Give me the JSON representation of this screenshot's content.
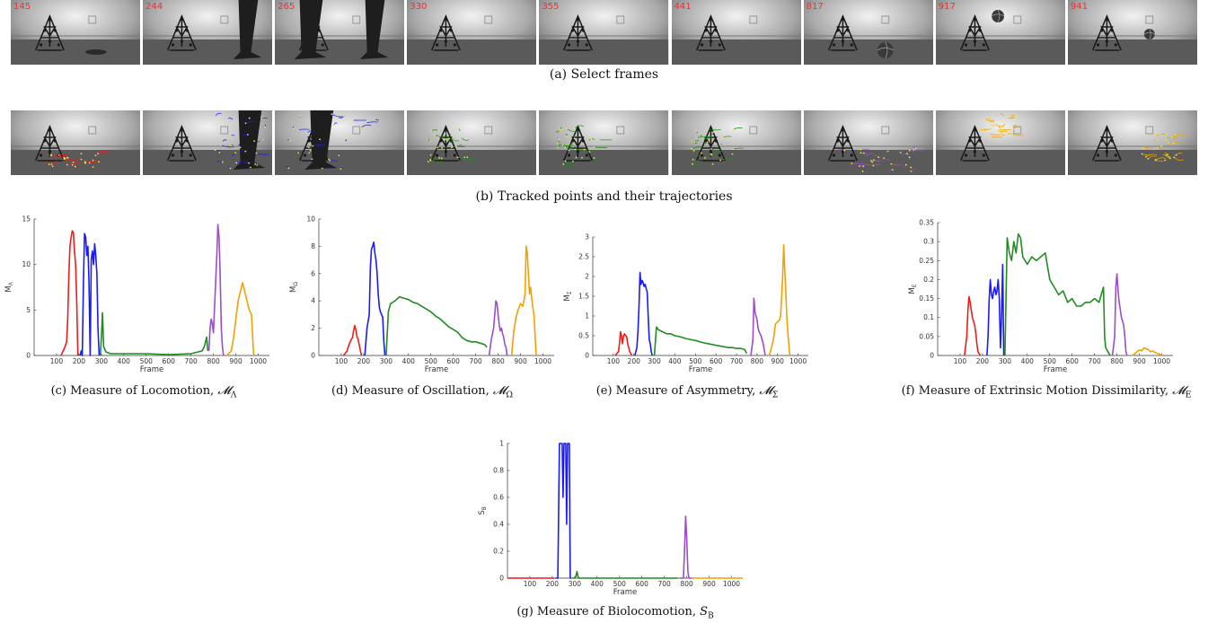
{
  "strip_a": {
    "frames": [
      {
        "num": "145",
        "scene": "object"
      },
      {
        "num": "244",
        "scene": "leg1"
      },
      {
        "num": "265",
        "scene": "leg2"
      },
      {
        "num": "330",
        "scene": "robot"
      },
      {
        "num": "355",
        "scene": "robot"
      },
      {
        "num": "441",
        "scene": "robot"
      },
      {
        "num": "817",
        "scene": "ball"
      },
      {
        "num": "917",
        "scene": "ball-air"
      },
      {
        "num": "941",
        "scene": "ball-right"
      }
    ],
    "caption": "(a) Select frames"
  },
  "strip_b": {
    "frames": [
      {
        "track": "red"
      },
      {
        "track": "blue"
      },
      {
        "track": "blue-wide"
      },
      {
        "track": "green"
      },
      {
        "track": "green"
      },
      {
        "track": "green"
      },
      {
        "track": "purple"
      },
      {
        "track": "orange-up"
      },
      {
        "track": "orange-right"
      }
    ],
    "caption": "(b) Tracked points and their trajectories"
  },
  "colors": {
    "red": "#ee1c1c",
    "blue": "#1a1aff",
    "green": "#228b22",
    "purple": "#9b4dca",
    "orange": "#f2a100"
  },
  "chart_data": [
    {
      "id": "c",
      "type": "line",
      "caption": "(c) Measure of Locomotion, ",
      "caption_math": "𝓜",
      "caption_sub": "Λ",
      "xlabel": "Frame",
      "ylabel": "M",
      "ylabel_sub": "Λ",
      "xlim": [
        0,
        1050
      ],
      "ylim": [
        0,
        15
      ],
      "xticks": [
        100,
        200,
        300,
        400,
        500,
        600,
        700,
        800,
        900,
        1000
      ],
      "yticks": [
        0,
        5,
        10,
        15
      ],
      "series": [
        {
          "color": "red",
          "x": [
            120,
            135,
            145,
            150,
            155,
            160,
            165,
            170,
            175,
            180,
            185,
            190,
            195
          ],
          "y": [
            0,
            0.8,
            1.5,
            4,
            9,
            12,
            13,
            13.7,
            13.5,
            11.5,
            10,
            6,
            0
          ]
        },
        {
          "color": "blue",
          "x": [
            205,
            210,
            215,
            220,
            225,
            230,
            235,
            240,
            245,
            250,
            255,
            260,
            265,
            270,
            275,
            280,
            285,
            290
          ],
          "y": [
            0,
            0.5,
            0,
            8,
            13.4,
            13,
            11,
            12,
            8,
            0,
            10.5,
            11.5,
            10,
            12.3,
            11,
            9,
            3,
            0
          ]
        },
        {
          "color": "green",
          "x": [
            295,
            300,
            305,
            310,
            320,
            340,
            400,
            500,
            600,
            700,
            750,
            760,
            770,
            775
          ],
          "y": [
            0,
            2,
            4.7,
            1,
            0.4,
            0.2,
            0.2,
            0.2,
            0.1,
            0.2,
            0.5,
            1,
            2,
            0.5
          ]
        },
        {
          "color": "purple",
          "x": [
            780,
            785,
            790,
            795,
            800,
            810,
            815,
            820,
            825,
            830,
            835,
            840,
            845
          ],
          "y": [
            0.5,
            3,
            4,
            3.5,
            2.5,
            8,
            11,
            14.4,
            13,
            9,
            3,
            1,
            0
          ]
        },
        {
          "color": "orange",
          "x": [
            860,
            880,
            890,
            900,
            910,
            920,
            930,
            940,
            950,
            960,
            970,
            975,
            980
          ],
          "y": [
            0,
            0.5,
            2,
            4,
            6,
            7,
            8,
            7,
            6,
            5,
            4.5,
            2,
            0
          ]
        }
      ]
    },
    {
      "id": "d",
      "type": "line",
      "caption": "(d) Measure of Oscillation, ",
      "caption_math": "𝓜",
      "caption_sub": "Ω",
      "xlabel": "Frame",
      "ylabel": "M",
      "ylabel_sub": "Ω",
      "xlim": [
        0,
        1050
      ],
      "ylim": [
        0,
        10
      ],
      "xticks": [
        100,
        200,
        300,
        400,
        500,
        600,
        700,
        800,
        900,
        1000
      ],
      "yticks": [
        0,
        2,
        4,
        6,
        8,
        10
      ],
      "series": [
        {
          "color": "red",
          "x": [
            110,
            125,
            135,
            145,
            150,
            155,
            160,
            165,
            170,
            175,
            180,
            185,
            190
          ],
          "y": [
            0,
            0.3,
            0.8,
            1.2,
            1.3,
            1.8,
            2.2,
            1.9,
            1.4,
            1.2,
            0.8,
            0.4,
            0
          ]
        },
        {
          "color": "blue",
          "x": [
            205,
            215,
            225,
            230,
            235,
            240,
            245,
            250,
            255,
            260,
            265,
            270,
            275,
            280,
            285,
            290,
            295
          ],
          "y": [
            0,
            2,
            3,
            6.5,
            7.8,
            8,
            8.3,
            7.5,
            7,
            6,
            4.5,
            3.5,
            3.2,
            3.0,
            2.8,
            1,
            0
          ]
        },
        {
          "color": "green",
          "x": [
            300,
            310,
            320,
            340,
            360,
            380,
            400,
            420,
            440,
            460,
            480,
            500,
            520,
            540,
            560,
            580,
            600,
            620,
            640,
            660,
            680,
            700,
            720,
            740,
            750
          ],
          "y": [
            0,
            3.2,
            3.8,
            4.0,
            4.3,
            4.2,
            4.1,
            3.9,
            3.8,
            3.6,
            3.4,
            3.2,
            2.9,
            2.7,
            2.4,
            2.1,
            1.9,
            1.7,
            1.3,
            1.1,
            1.0,
            1.0,
            0.9,
            0.8,
            0.6
          ]
        },
        {
          "color": "purple",
          "x": [
            760,
            770,
            780,
            790,
            795,
            800,
            805,
            810,
            815,
            820,
            825,
            830,
            835,
            840
          ],
          "y": [
            0,
            1.2,
            2,
            4,
            3.8,
            3,
            2.2,
            1.8,
            2.0,
            1.6,
            1.3,
            0.8,
            0.6,
            0
          ]
        },
        {
          "color": "orange",
          "x": [
            860,
            870,
            880,
            890,
            900,
            910,
            915,
            920,
            925,
            930,
            935,
            940,
            945,
            950,
            955,
            960,
            970
          ],
          "y": [
            0,
            1.8,
            2.8,
            3.4,
            3.8,
            3.6,
            4,
            4.5,
            8,
            7.5,
            6,
            4.5,
            5,
            4.2,
            3.5,
            3,
            0
          ]
        }
      ]
    },
    {
      "id": "e",
      "type": "line",
      "caption": "(e) Measure of Asymmetry, ",
      "caption_math": "𝓜",
      "caption_sub": "Σ",
      "xlabel": "Frame",
      "ylabel": "M",
      "ylabel_sub": "Σ",
      "xlim": [
        0,
        1050
      ],
      "ylim": [
        0,
        3
      ],
      "xticks": [
        100,
        200,
        300,
        400,
        500,
        600,
        700,
        800,
        900,
        1000
      ],
      "yticks": [
        0,
        0.5,
        1,
        1.5,
        2,
        2.5,
        3
      ],
      "series": [
        {
          "color": "red",
          "x": [
            110,
            125,
            130,
            135,
            140,
            145,
            150,
            155,
            160,
            165,
            170,
            175,
            180,
            185,
            190
          ],
          "y": [
            0,
            0.1,
            0.3,
            0.6,
            0.5,
            0.3,
            0.5,
            0.55,
            0.5,
            0.48,
            0.3,
            0.2,
            0.1,
            0.05,
            0
          ]
        },
        {
          "color": "blue",
          "x": [
            205,
            215,
            220,
            225,
            230,
            235,
            240,
            245,
            250,
            255,
            260,
            265,
            270,
            275,
            280,
            285,
            290
          ],
          "y": [
            0,
            0.2,
            0.6,
            1.2,
            2.1,
            1.8,
            1.9,
            1.85,
            1.75,
            1.8,
            1.7,
            1.6,
            1.0,
            0.4,
            0.3,
            0.1,
            0
          ]
        },
        {
          "color": "green",
          "x": [
            300,
            310,
            320,
            340,
            360,
            380,
            400,
            420,
            440,
            460,
            480,
            500,
            520,
            540,
            560,
            580,
            600,
            620,
            640,
            660,
            680,
            700,
            720,
            740,
            750
          ],
          "y": [
            0,
            0.72,
            0.65,
            0.6,
            0.55,
            0.55,
            0.5,
            0.48,
            0.45,
            0.42,
            0.4,
            0.38,
            0.35,
            0.32,
            0.3,
            0.28,
            0.26,
            0.24,
            0.22,
            0.2,
            0.2,
            0.18,
            0.18,
            0.15,
            0.05
          ]
        },
        {
          "color": "purple",
          "x": [
            770,
            780,
            785,
            790,
            795,
            800,
            805,
            810,
            815,
            820,
            830,
            840
          ],
          "y": [
            0,
            0.4,
            1.45,
            1.1,
            1.0,
            0.9,
            0.7,
            0.6,
            0.55,
            0.5,
            0.3,
            0
          ]
        },
        {
          "color": "orange",
          "x": [
            860,
            870,
            880,
            885,
            890,
            900,
            910,
            915,
            920,
            925,
            930,
            935,
            940,
            945,
            950,
            960
          ],
          "y": [
            0,
            0.2,
            0.4,
            0.6,
            0.8,
            0.85,
            0.9,
            1.0,
            1.5,
            2.0,
            2.8,
            2.2,
            1.6,
            1.0,
            0.6,
            0
          ]
        }
      ]
    },
    {
      "id": "f",
      "type": "line",
      "caption": "(f) Measure of Extrinsic Motion Dissimilarity, ",
      "caption_math": "𝓜",
      "caption_sub": "E",
      "xlabel": "Frame",
      "ylabel": "M",
      "ylabel_sub": "E",
      "xlim": [
        0,
        1050
      ],
      "ylim": [
        0,
        0.35
      ],
      "xticks": [
        100,
        200,
        300,
        400,
        500,
        600,
        700,
        800,
        900,
        1000
      ],
      "yticks": [
        0,
        0.05,
        0.1,
        0.15,
        0.2,
        0.25,
        0.3,
        0.35
      ],
      "series": [
        {
          "color": "red",
          "x": [
            120,
            130,
            135,
            140,
            145,
            150,
            155,
            160,
            165,
            170,
            175,
            180,
            185,
            190
          ],
          "y": [
            0,
            0.05,
            0.12,
            0.155,
            0.14,
            0.12,
            0.1,
            0.09,
            0.08,
            0.06,
            0.03,
            0.01,
            0.005,
            0
          ]
        },
        {
          "color": "blue",
          "x": [
            220,
            225,
            230,
            235,
            240,
            245,
            250,
            255,
            260,
            265,
            270,
            275,
            280,
            285,
            290,
            295
          ],
          "y": [
            0,
            0.05,
            0.15,
            0.2,
            0.16,
            0.15,
            0.17,
            0.18,
            0.16,
            0.17,
            0.2,
            0.15,
            0.02,
            0.1,
            0.24,
            0
          ]
        },
        {
          "color": "green",
          "x": [
            300,
            310,
            320,
            330,
            340,
            350,
            360,
            370,
            380,
            400,
            420,
            440,
            460,
            480,
            500,
            520,
            540,
            560,
            580,
            600,
            620,
            640,
            660,
            680,
            700,
            720,
            740,
            745,
            750,
            760,
            770
          ],
          "y": [
            0,
            0.31,
            0.27,
            0.25,
            0.3,
            0.27,
            0.32,
            0.31,
            0.26,
            0.24,
            0.26,
            0.25,
            0.26,
            0.27,
            0.2,
            0.18,
            0.16,
            0.17,
            0.14,
            0.15,
            0.13,
            0.13,
            0.14,
            0.14,
            0.15,
            0.14,
            0.18,
            0.05,
            0.02,
            0.01,
            0
          ]
        },
        {
          "color": "purple",
          "x": [
            780,
            790,
            795,
            800,
            805,
            810,
            815,
            820,
            825,
            830,
            835,
            840,
            845
          ],
          "y": [
            0,
            0.05,
            0.18,
            0.215,
            0.17,
            0.14,
            0.12,
            0.1,
            0.09,
            0.08,
            0.05,
            0.01,
            0
          ]
        },
        {
          "color": "orange",
          "x": [
            870,
            880,
            890,
            900,
            910,
            920,
            930,
            940,
            950,
            960,
            970,
            980,
            990,
            1000
          ],
          "y": [
            0,
            0.005,
            0.01,
            0.015,
            0.012,
            0.02,
            0.018,
            0.015,
            0.01,
            0.012,
            0.008,
            0.006,
            0.004,
            0
          ]
        }
      ]
    },
    {
      "id": "g",
      "type": "line",
      "caption": "(g) Measure of Biolocomotion, ",
      "caption_math": "S",
      "caption_sub": "B",
      "xlabel": "Frame",
      "ylabel": "S",
      "ylabel_sub": "B",
      "xlim": [
        0,
        1050
      ],
      "ylim": [
        0,
        1
      ],
      "xticks": [
        100,
        200,
        300,
        400,
        500,
        600,
        700,
        800,
        900,
        1000
      ],
      "yticks": [
        0,
        0.2,
        0.4,
        0.6,
        0.8,
        1
      ],
      "series": [
        {
          "color": "red",
          "x": [
            0,
            100,
            200,
            210
          ],
          "y": [
            0,
            0,
            0,
            0
          ]
        },
        {
          "color": "blue",
          "x": [
            215,
            225,
            232,
            238,
            244,
            248,
            252,
            256,
            260,
            264,
            268,
            272,
            276,
            280,
            285
          ],
          "y": [
            0,
            0,
            1.0,
            1.0,
            1.0,
            0.6,
            1.0,
            1.0,
            1.0,
            0.4,
            1.0,
            1.0,
            1.0,
            0,
            0
          ]
        },
        {
          "color": "green",
          "x": [
            290,
            300,
            305,
            310,
            315,
            320,
            400,
            500,
            600,
            700,
            760
          ],
          "y": [
            0,
            0,
            0.01,
            0.05,
            0.01,
            0,
            0,
            0,
            0,
            0,
            0
          ]
        },
        {
          "color": "purple",
          "x": [
            770,
            785,
            790,
            795,
            800,
            805,
            810,
            820
          ],
          "y": [
            0,
            0,
            0.2,
            0.46,
            0.3,
            0.05,
            0,
            0
          ]
        },
        {
          "color": "orange",
          "x": [
            830,
            900,
            1000,
            1050
          ],
          "y": [
            0,
            0,
            0,
            0
          ]
        }
      ]
    }
  ]
}
